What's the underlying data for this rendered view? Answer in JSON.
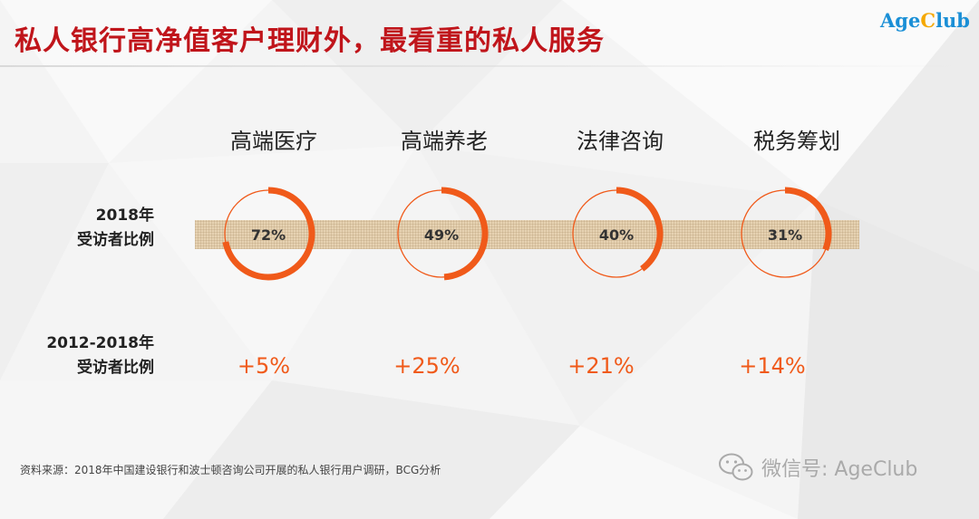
{
  "title": "私人银行高净值客户理财外，最看重的私人服务",
  "logo": {
    "prefix": "Age",
    "c": "C",
    "suffix": "lub"
  },
  "row_labels": {
    "share_2018": [
      "2018年",
      "受访者比例"
    ],
    "change_2012_2018": [
      "2012-2018年",
      "受访者比例"
    ]
  },
  "chart_data": {
    "type": "table",
    "categories": [
      "高端医疗",
      "高端养老",
      "法律咨询",
      "税务筹划"
    ],
    "share_2018_percent": [
      72,
      49,
      40,
      31
    ],
    "share_2018_labels": [
      "72%",
      "49%",
      "40%",
      "31%"
    ],
    "change_2012_2018_percent": [
      5,
      25,
      21,
      14
    ],
    "change_2012_2018_labels": [
      "+5%",
      "+25%",
      "+21%",
      "+14%"
    ]
  },
  "source": "资料来源：2018年中国建设银行和波士顿咨询公司开展的私人银行用户调研，BCG分析",
  "watermark": "微信号: AgeClub",
  "colors": {
    "title": "#c0151b",
    "ring": "#f05a1a",
    "accent_text": "#f05a1a",
    "logo_blue": "#1a8fd6",
    "logo_yellow": "#f5a800"
  },
  "icons": [
    "wechat-icon"
  ]
}
